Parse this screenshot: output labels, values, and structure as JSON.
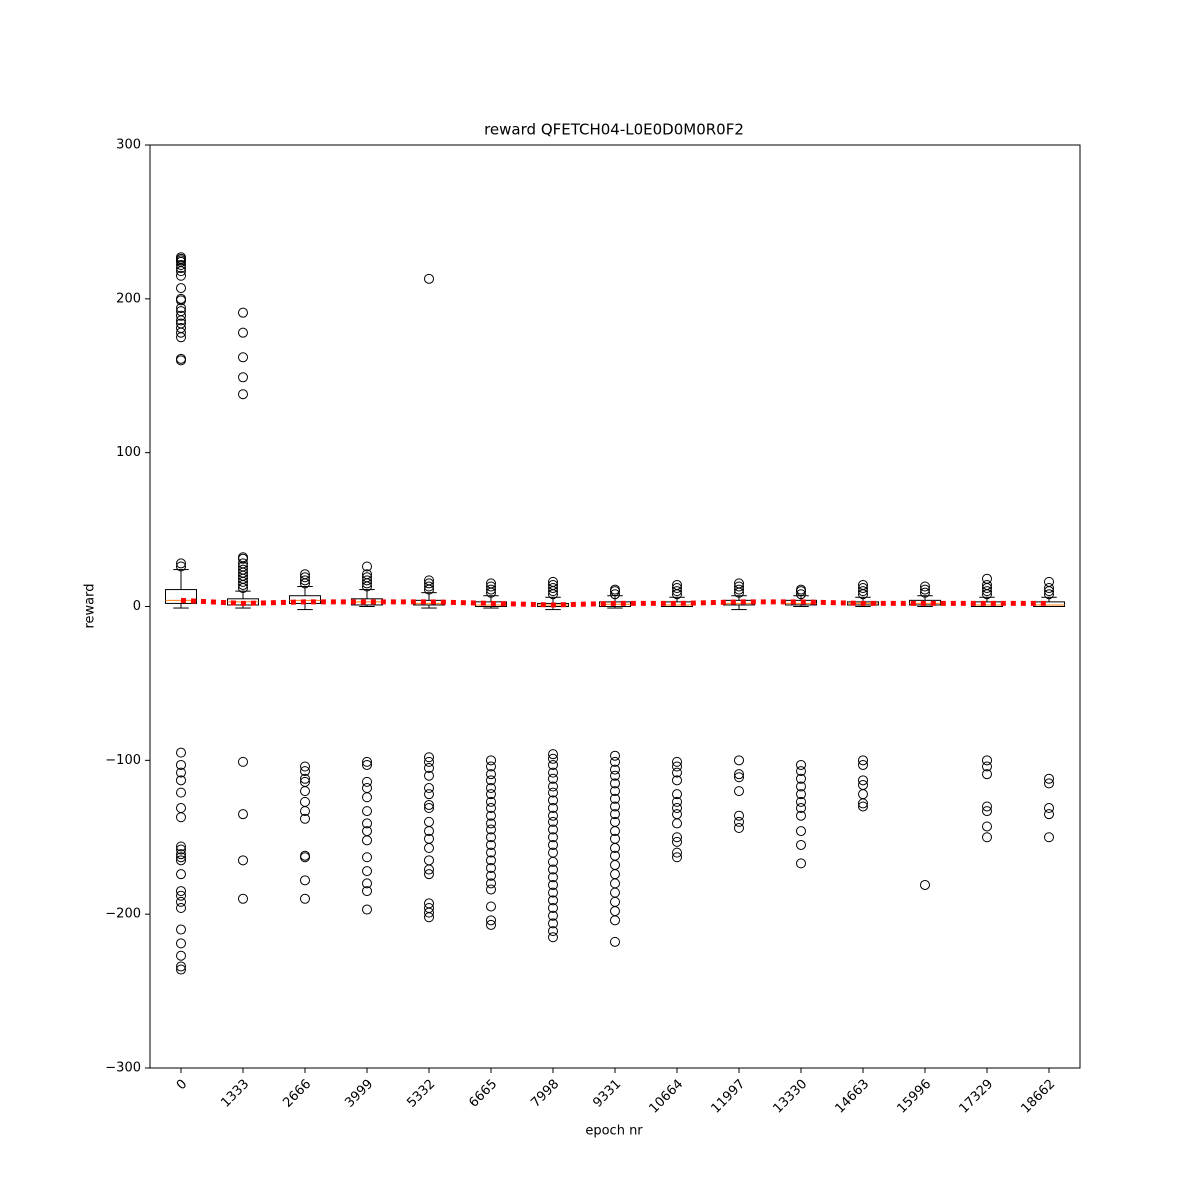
{
  "chart_data": {
    "type": "box",
    "title": "reward QFETCH04-L0E0D0M0R0F2",
    "x_label": "epoch nr",
    "y_label": "reward",
    "categories": [
      "0",
      "1333",
      "2666",
      "3999",
      "5332",
      "6665",
      "7998",
      "9331",
      "10664",
      "11997",
      "13330",
      "14663",
      "15996",
      "17329",
      "18662"
    ],
    "ylim": [
      -300,
      300
    ],
    "yticks": [
      {
        "value": -300,
        "label": "−300"
      },
      {
        "value": -200,
        "label": "−200"
      },
      {
        "value": -100,
        "label": "−100"
      },
      0,
      100,
      200,
      300
    ],
    "box_color": "#000000",
    "median_color": "#ff7f0e",
    "boxes": [
      {
        "whislo": -1,
        "q1": 2,
        "med": 4,
        "q3": 11,
        "whishi": 24,
        "fliers": [
          26,
          28,
          160,
          161,
          175,
          178,
          181,
          184,
          186,
          189,
          192,
          194,
          199,
          200,
          207,
          215,
          218,
          220,
          222,
          224,
          225,
          226,
          227,
          -95,
          -103,
          -108,
          -113,
          -121,
          -131,
          -137,
          -156,
          -158,
          -161,
          -163,
          -165,
          -174,
          -185,
          -188,
          -192,
          -196,
          -210,
          -219,
          -227,
          -234,
          -236
        ]
      },
      {
        "whislo": -1,
        "q1": 1,
        "med": 3,
        "q3": 5,
        "whishi": 10,
        "fliers": [
          12,
          14,
          16,
          18,
          20,
          22,
          24,
          26,
          28,
          31,
          32,
          138,
          149,
          162,
          178,
          191,
          -101,
          -135,
          -165,
          -190
        ]
      },
      {
        "whislo": -2,
        "q1": 2,
        "med": 4,
        "q3": 7,
        "whishi": 13,
        "fliers": [
          15,
          17,
          19,
          21,
          -104,
          -107,
          -112,
          -114,
          -120,
          -127,
          -133,
          -138,
          -162,
          -163,
          -178,
          -190
        ]
      },
      {
        "whislo": 0,
        "q1": 1,
        "med": 3,
        "q3": 5,
        "whishi": 11,
        "fliers": [
          13,
          15,
          17,
          19,
          21,
          26,
          -101,
          -103,
          -114,
          -118,
          -124,
          -133,
          -141,
          -146,
          -152,
          -163,
          -172,
          -180,
          -185,
          -197
        ]
      },
      {
        "whislo": -1,
        "q1": 1,
        "med": 2,
        "q3": 4,
        "whishi": 9,
        "fliers": [
          11,
          13,
          15,
          17,
          213,
          -98,
          -101,
          -105,
          -110,
          -118,
          -122,
          -129,
          -131,
          -140,
          -146,
          -151,
          -157,
          -165,
          -171,
          -174,
          -193,
          -196,
          -199,
          -202
        ]
      },
      {
        "whislo": -1,
        "q1": 0,
        "med": 1,
        "q3": 3,
        "whishi": 7,
        "fliers": [
          9,
          11,
          13,
          15,
          -100,
          -104,
          -109,
          -113,
          -118,
          -122,
          -127,
          -131,
          -136,
          -141,
          -145,
          -150,
          -155,
          -160,
          -165,
          -170,
          -175,
          -180,
          -184,
          -195,
          -204,
          -207
        ]
      },
      {
        "whislo": -2,
        "q1": 0,
        "med": 1,
        "q3": 2,
        "whishi": 6,
        "fliers": [
          8,
          10,
          12,
          14,
          16,
          -96,
          -99,
          -103,
          -108,
          -112,
          -117,
          -121,
          -126,
          -131,
          -136,
          -140,
          -145,
          -150,
          -155,
          -160,
          -166,
          -171,
          -176,
          -181,
          -186,
          -191,
          -196,
          -201,
          -206,
          -211,
          -215
        ]
      },
      {
        "whislo": -1,
        "q1": 0,
        "med": 1.5,
        "q3": 3,
        "whishi": 7,
        "fliers": [
          8,
          10,
          11,
          -97,
          -101,
          -106,
          -110,
          -115,
          -120,
          -125,
          -130,
          -135,
          -140,
          -146,
          -151,
          -157,
          -162,
          -168,
          -174,
          -180,
          -186,
          -192,
          -198,
          -204,
          -218
        ]
      },
      {
        "whislo": 0,
        "q1": 0,
        "med": 1,
        "q3": 3,
        "whishi": 6,
        "fliers": [
          8,
          10,
          12,
          14,
          -101,
          -104,
          -108,
          -113,
          -122,
          -127,
          -131,
          -135,
          -141,
          -150,
          -153,
          -160,
          -163
        ]
      },
      {
        "whislo": -2,
        "q1": 1,
        "med": 2,
        "q3": 4,
        "whishi": 7,
        "fliers": [
          9,
          11,
          13,
          15,
          -100,
          -109,
          -111,
          -120,
          -136,
          -140,
          -144
        ]
      },
      {
        "whislo": 0,
        "q1": 1,
        "med": 2,
        "q3": 4,
        "whishi": 7,
        "fliers": [
          8,
          10,
          11,
          -103,
          -107,
          -112,
          -117,
          -122,
          -127,
          -131,
          -136,
          -146,
          -155,
          -167
        ]
      },
      {
        "whislo": 0,
        "q1": 1,
        "med": 2,
        "q3": 3,
        "whishi": 6,
        "fliers": [
          8,
          10,
          12,
          14,
          -100,
          -103,
          -113,
          -116,
          -122,
          -128,
          -130
        ]
      },
      {
        "whislo": 0,
        "q1": 1,
        "med": 2,
        "q3": 4,
        "whishi": 7,
        "fliers": [
          9,
          11,
          13,
          -181
        ]
      },
      {
        "whislo": 0,
        "q1": 0,
        "med": 1,
        "q3": 3,
        "whishi": 6,
        "fliers": [
          8,
          10,
          12,
          14,
          18,
          -100,
          -104,
          -109,
          -130,
          -133,
          -143,
          -150
        ]
      },
      {
        "whislo": 0,
        "q1": 0,
        "med": 1,
        "q3": 3,
        "whishi": 6,
        "fliers": [
          8,
          10,
          12,
          16,
          -112,
          -115,
          -131,
          -135,
          -150
        ]
      }
    ],
    "mean_line": {
      "color": "#ff0000",
      "values": [
        4,
        2,
        3,
        3,
        3,
        2,
        1,
        2,
        2,
        3,
        3,
        2,
        2,
        2,
        2
      ]
    }
  }
}
